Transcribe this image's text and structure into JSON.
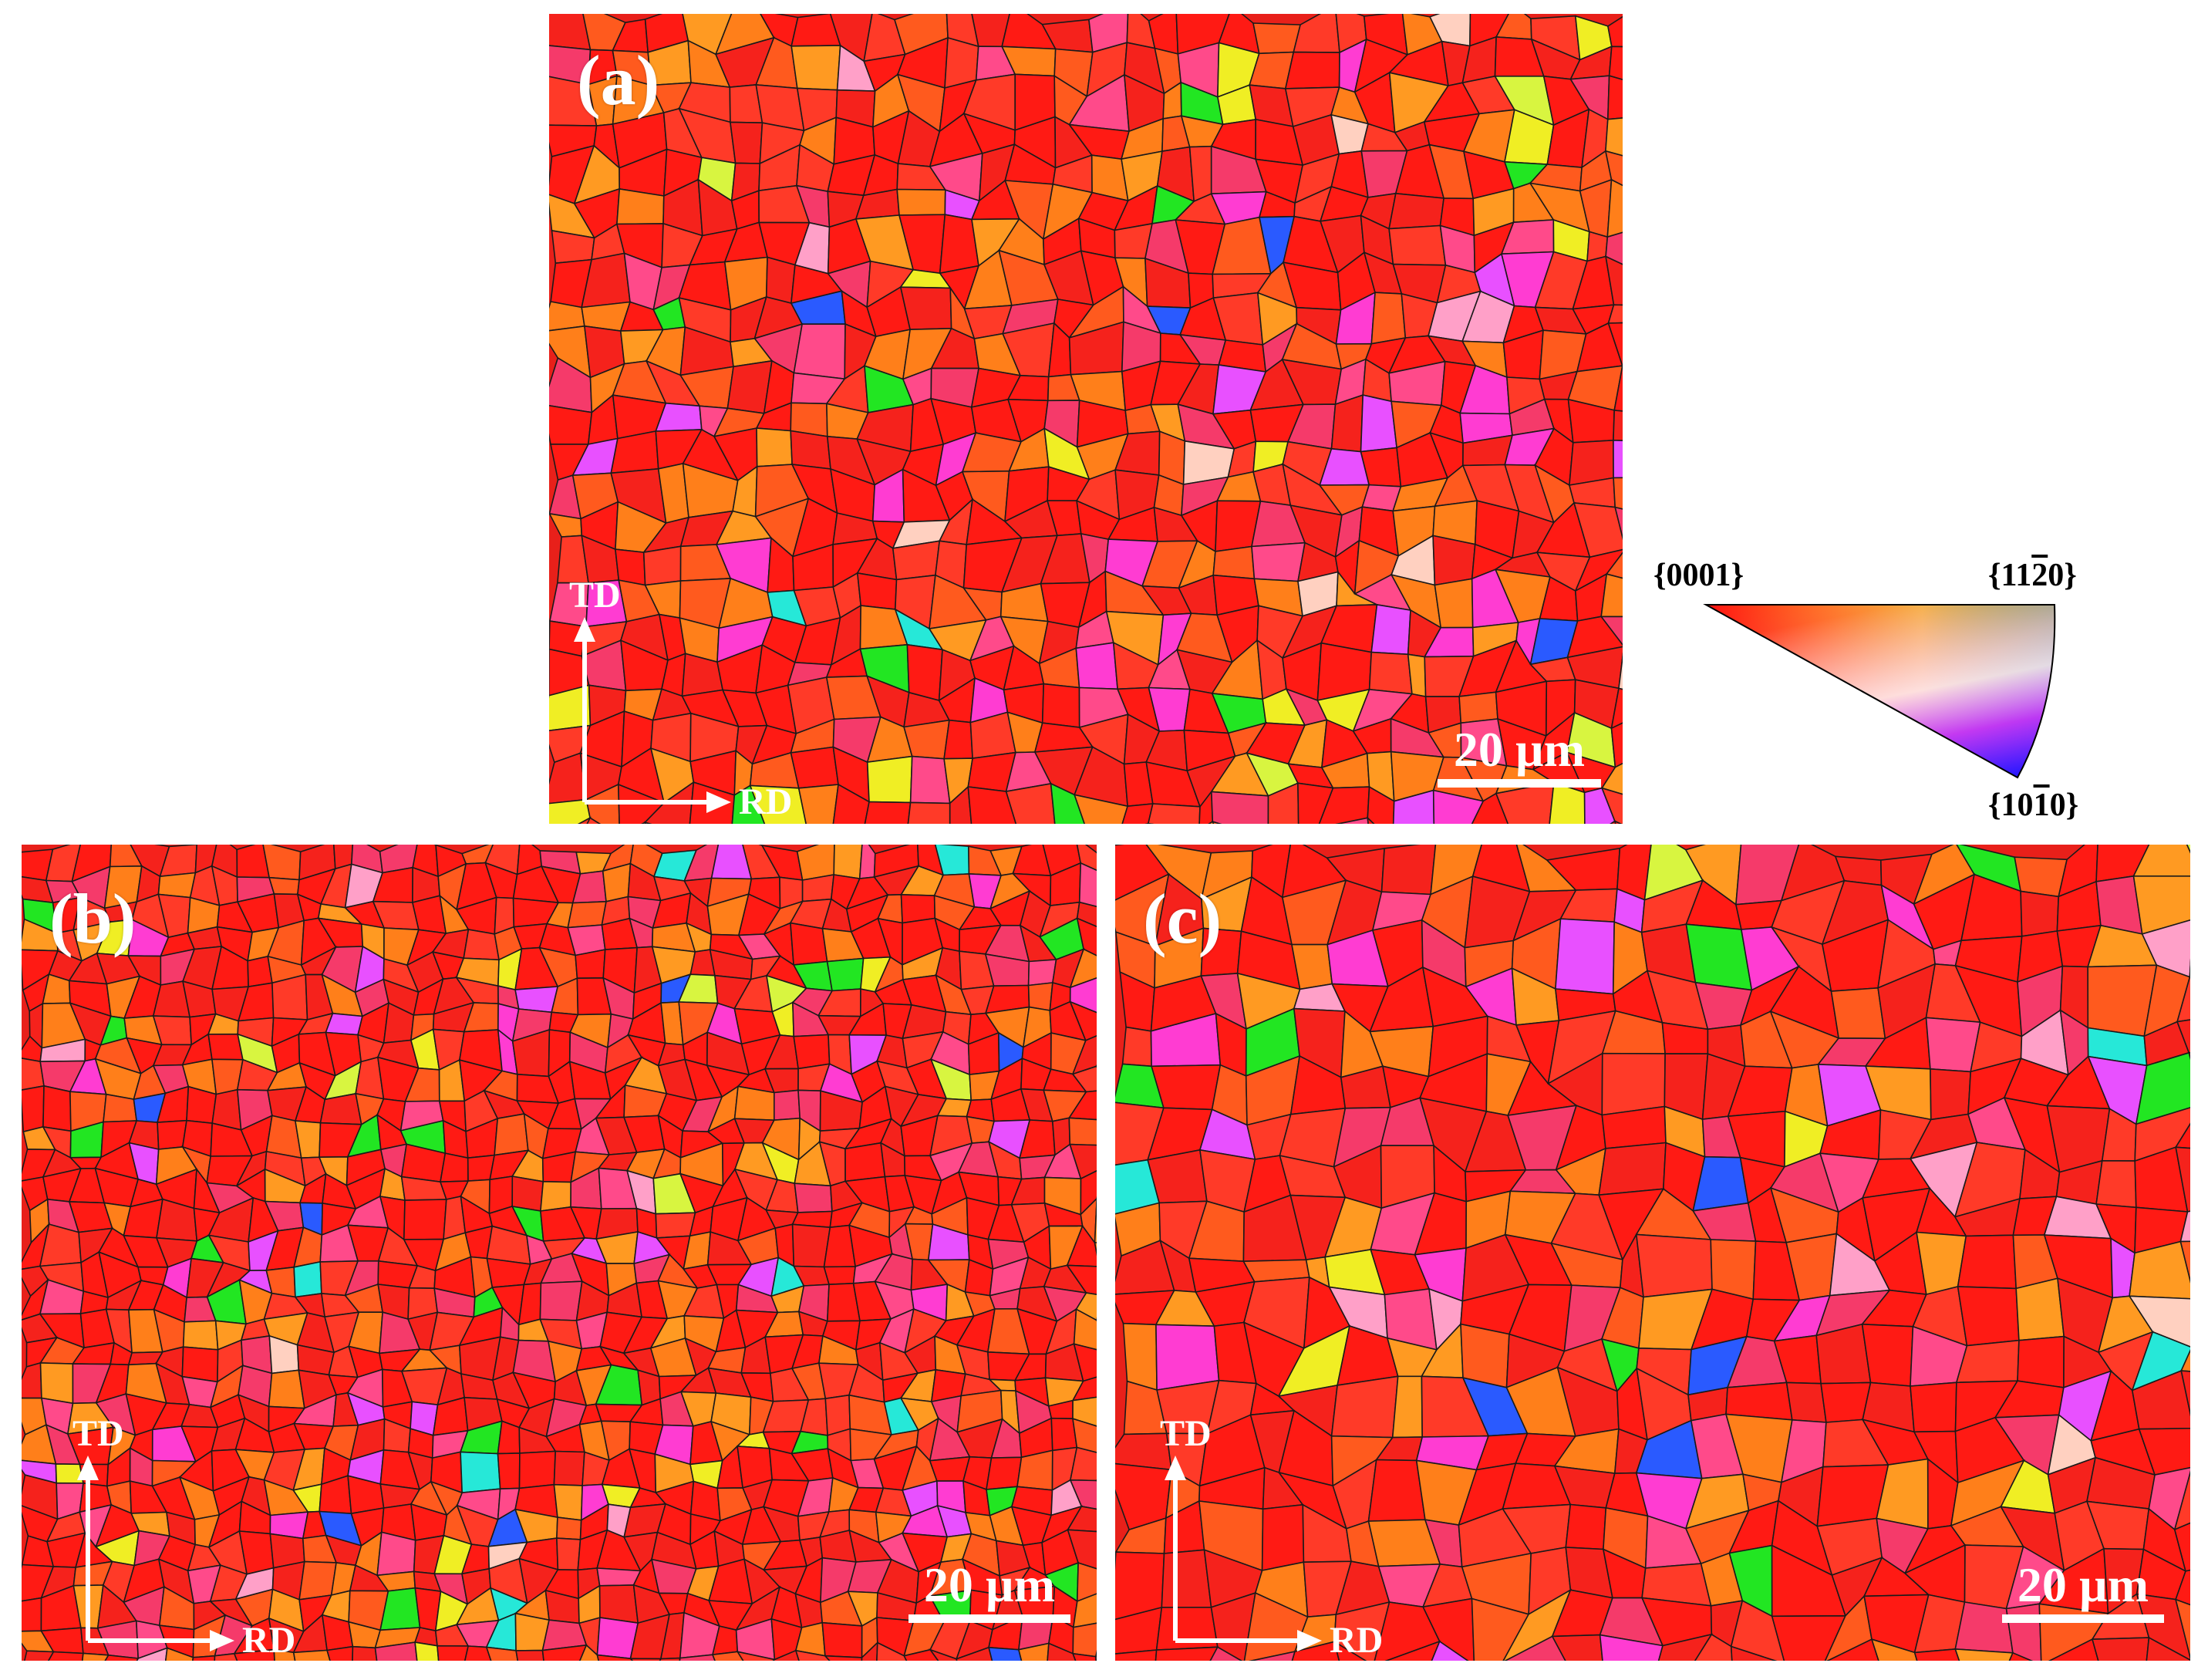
{
  "panels": [
    {
      "label": "(a)",
      "scale_text": "20 µm",
      "axis_x": "RD",
      "axis_y": "TD"
    },
    {
      "label": "(b)",
      "scale_text": "20 µm",
      "axis_x": "RD",
      "axis_y": "TD"
    },
    {
      "label": "(c)",
      "scale_text": "20 µm",
      "axis_x": "RD",
      "axis_y": "TD"
    }
  ],
  "legend": {
    "corner_0001": "{0001}",
    "corner_11-20_pre": "{11",
    "corner_11-20_bar": "2",
    "corner_11-20_post": "0}",
    "corner_10-10_pre": "{10",
    "corner_10-10_bar": "1",
    "corner_10-10_post": "0}"
  },
  "colors": {
    "red_0001": "#ff1010",
    "green_11-20": "#1ee61e",
    "blue_10-10": "#1a1aff",
    "grain_boundary": "#1a1a1a"
  }
}
